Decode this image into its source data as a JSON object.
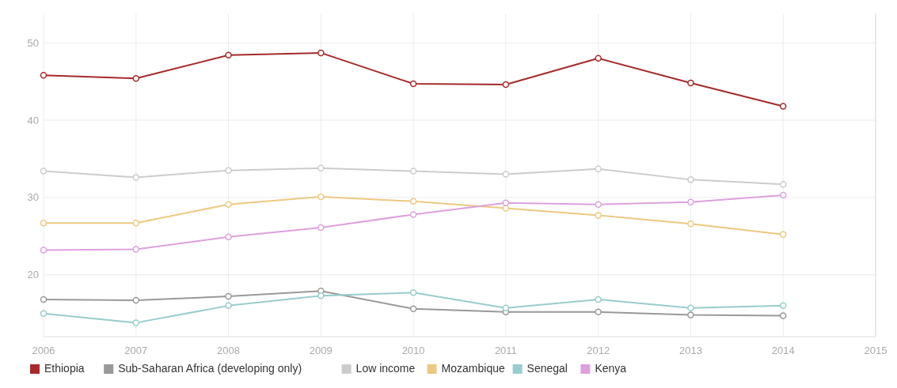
{
  "chart_data": {
    "type": "line",
    "x": [
      2006,
      2007,
      2008,
      2009,
      2010,
      2011,
      2012,
      2013,
      2014
    ],
    "xlim": [
      2006,
      2015
    ],
    "xticks": [
      2006,
      2007,
      2008,
      2009,
      2010,
      2011,
      2012,
      2013,
      2014,
      2015
    ],
    "ylim": [
      12,
      53.8
    ],
    "yticks": [
      20,
      30,
      40,
      50
    ],
    "grid": true,
    "legend": "bottom",
    "marker": "circle",
    "series": [
      {
        "name": "Ethiopia",
        "color": "#a52a2a",
        "values": [
          45.8,
          45.4,
          48.4,
          48.7,
          44.7,
          44.6,
          48.0,
          44.8,
          41.8
        ]
      },
      {
        "name": "Sub-Saharan Africa (developing only)",
        "color": "#999999",
        "values": [
          16.8,
          16.7,
          17.2,
          17.9,
          15.6,
          15.2,
          15.2,
          14.8,
          14.7
        ]
      },
      {
        "name": "Low income",
        "color": "#cccccc",
        "values": [
          33.4,
          32.6,
          33.5,
          33.8,
          33.4,
          33.0,
          33.7,
          32.3,
          31.7
        ]
      },
      {
        "name": "Mozambique",
        "color": "#edc882",
        "values": [
          26.7,
          26.7,
          29.1,
          30.1,
          29.5,
          28.6,
          27.7,
          26.6,
          25.2
        ]
      },
      {
        "name": "Senegal",
        "color": "#99cccc",
        "values": [
          15.0,
          13.8,
          16.0,
          17.3,
          17.7,
          15.7,
          16.8,
          15.7,
          16.0
        ]
      },
      {
        "name": "Kenya",
        "color": "#dda0dd",
        "values": [
          23.2,
          23.3,
          24.9,
          26.1,
          27.8,
          29.3,
          29.1,
          29.4,
          30.3
        ]
      }
    ]
  }
}
